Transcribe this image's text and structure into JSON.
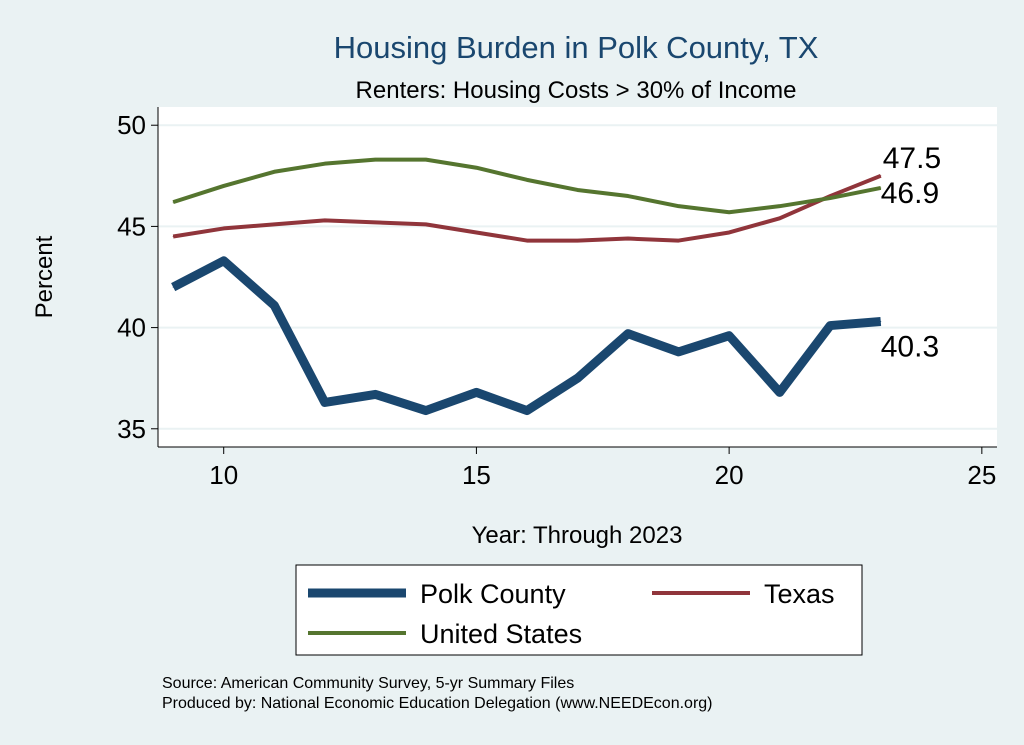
{
  "chart_data": {
    "type": "line",
    "title": "Housing Burden in Polk County, TX",
    "subtitle": "Renters: Housing Costs > 30% of Income",
    "xlabel": "Year: Through 2023",
    "ylabel": "Percent",
    "xlim": [
      8.7,
      25.3
    ],
    "ylim": [
      34.1,
      50.9
    ],
    "xticks": [
      10,
      15,
      20,
      25
    ],
    "yticks": [
      35,
      40,
      45,
      50
    ],
    "grid": true,
    "x": [
      9,
      10,
      11,
      12,
      13,
      14,
      15,
      16,
      17,
      18,
      19,
      20,
      21,
      22,
      23
    ],
    "series": [
      {
        "name": "Polk County",
        "color": "#1a476f",
        "width": 9,
        "values": [
          42.0,
          43.3,
          41.1,
          36.3,
          36.7,
          35.9,
          36.8,
          35.9,
          37.5,
          39.7,
          38.8,
          39.6,
          36.8,
          40.1,
          40.3
        ],
        "end_label": "40.3"
      },
      {
        "name": "Texas",
        "color": "#90353b",
        "width": 4,
        "values": [
          44.5,
          44.9,
          45.1,
          45.3,
          45.2,
          45.1,
          44.7,
          44.3,
          44.3,
          44.4,
          44.3,
          44.7,
          45.4,
          46.5,
          47.5
        ],
        "end_label": "47.5"
      },
      {
        "name": "United States",
        "color": "#55752f",
        "width": 4,
        "values": [
          46.2,
          47.0,
          47.7,
          48.1,
          48.3,
          48.3,
          47.9,
          47.3,
          46.8,
          46.5,
          46.0,
          45.7,
          46.0,
          46.4,
          46.9
        ],
        "end_label": "46.9"
      }
    ],
    "legend_position": "bottom",
    "notes": [
      "Source: American Community Survey, 5-yr Summary Files",
      "Produced by: National Economic Education Delegation (www.NEEDEcon.org)"
    ]
  }
}
